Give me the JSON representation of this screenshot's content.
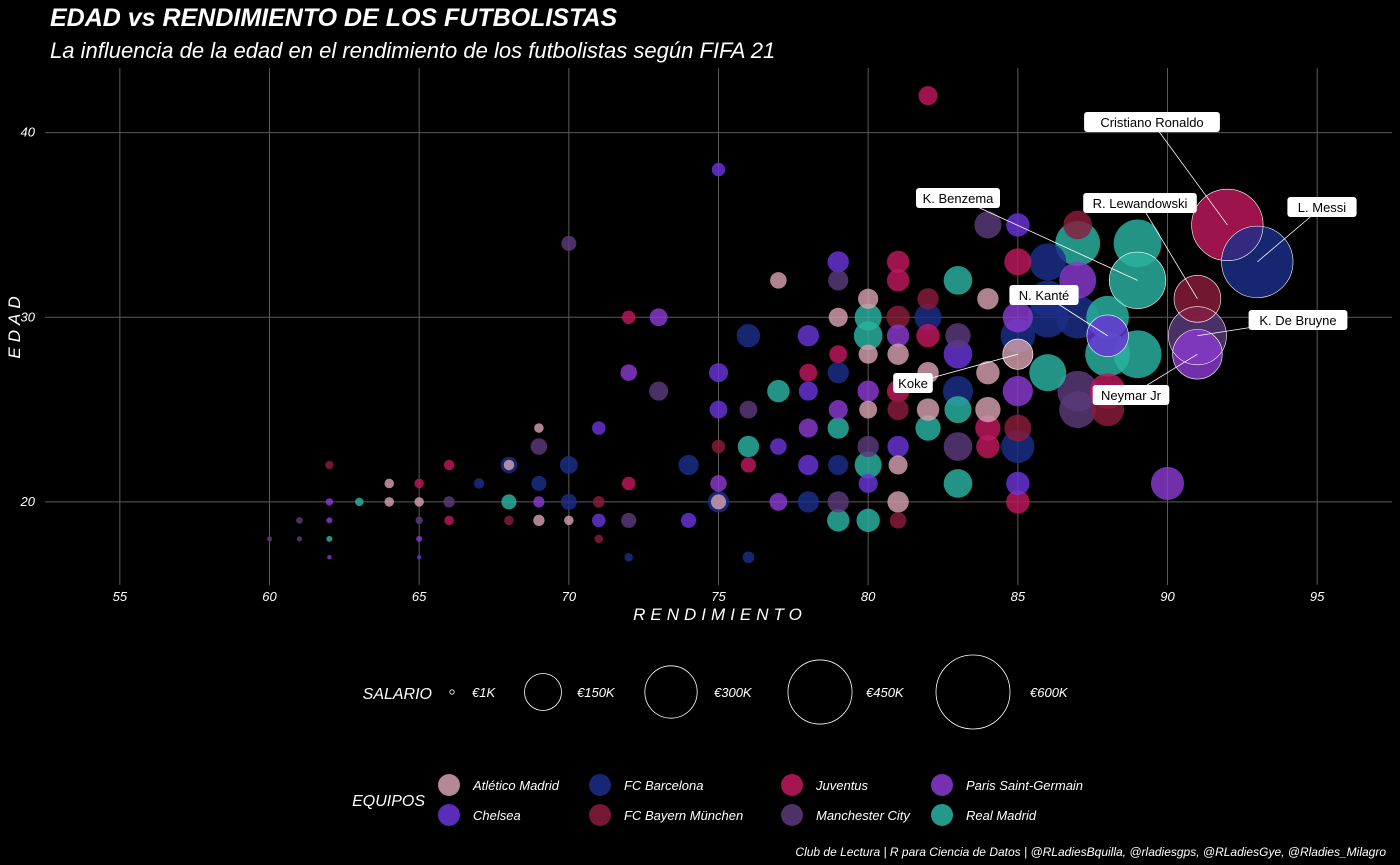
{
  "title": "EDAD vs RENDIMIENTO DE LOS FUTBOLISTAS",
  "subtitle": "La influencia de la edad en el rendimiento de los futbolistas según FIFA 21",
  "caption": "Club de Lectura | R para Ciencia de Datos | @RLadiesBquilla, @rladiesgps, @RLadiesGye, @Rladies_Milagro",
  "chart_data": {
    "type": "scatter",
    "xlabel": "RENDIMIENTO",
    "ylabel": "EDAD",
    "xlim": [
      52.5,
      97.5
    ],
    "ylim": [
      15.5,
      43.5
    ],
    "x_ticks": [
      55,
      60,
      65,
      70,
      75,
      80,
      85,
      90,
      95
    ],
    "y_ticks": [
      20,
      30,
      40
    ],
    "grid": true,
    "size_legend": {
      "title": "SALARIO",
      "entries": [
        {
          "label": "€1K",
          "value": 1000
        },
        {
          "label": "€150K",
          "value": 150000
        },
        {
          "label": "€300K",
          "value": 300000
        },
        {
          "label": "€450K",
          "value": 450000
        },
        {
          "label": "€600K",
          "value": 600000
        }
      ]
    },
    "color_legend": {
      "title": "EQUIPOS",
      "teams": [
        {
          "name": "Atlético Madrid",
          "color": "#d4a0ae"
        },
        {
          "name": "Chelsea",
          "color": "#6a35d8"
        },
        {
          "name": "FC Barcelona",
          "color": "#1c2e8a"
        },
        {
          "name": "FC Bayern München",
          "color": "#8a1c3a"
        },
        {
          "name": "Juventus",
          "color": "#c0185e"
        },
        {
          "name": "Manchester City",
          "color": "#5a3a7a"
        },
        {
          "name": "Paris Saint-Germain",
          "color": "#8a3ad0"
        },
        {
          "name": "Real Madrid",
          "color": "#2ab3a2"
        }
      ]
    },
    "labeled_players": [
      {
        "name": "Cristiano Ronaldo",
        "x": 92,
        "y": 35,
        "team": "Juventus",
        "salary": 560000
      },
      {
        "name": "L. Messi",
        "x": 93,
        "y": 33,
        "team": "FC Barcelona",
        "salary": 560000
      },
      {
        "name": "K. Benzema",
        "x": 89,
        "y": 32,
        "team": "Real Madrid",
        "salary": 350000
      },
      {
        "name": "R. Lewandowski",
        "x": 91,
        "y": 31,
        "team": "FC Bayern München",
        "salary": 240000
      },
      {
        "name": "N. Kanté",
        "x": 88,
        "y": 29,
        "team": "Chelsea",
        "salary": 190000
      },
      {
        "name": "K. De Bruyne",
        "x": 91,
        "y": 29,
        "team": "Manchester City",
        "salary": 370000
      },
      {
        "name": "Neymar Jr",
        "x": 91,
        "y": 28,
        "team": "Paris Saint-Germain",
        "salary": 270000
      },
      {
        "name": "Koke",
        "x": 85,
        "y": 28,
        "team": "Atlético Madrid",
        "salary": 100000
      }
    ],
    "points": [
      [
        60,
        18,
        "Manchester City",
        3000
      ],
      [
        61,
        18,
        "Manchester City",
        3000
      ],
      [
        61,
        19,
        "Manchester City",
        5000
      ],
      [
        62,
        17,
        "Paris Saint-Germain",
        1000
      ],
      [
        62,
        18,
        "Real Madrid",
        4000
      ],
      [
        62,
        19,
        "Paris Saint-Germain",
        4000
      ],
      [
        62,
        20,
        "Paris Saint-Germain",
        6000
      ],
      [
        62,
        22,
        "FC Bayern München",
        8000
      ],
      [
        63,
        20,
        "Real Madrid",
        8000
      ],
      [
        64,
        20,
        "Atlético Madrid",
        10000
      ],
      [
        64,
        21,
        "Atlético Madrid",
        10000
      ],
      [
        65,
        17,
        "Chelsea",
        1000
      ],
      [
        65,
        18,
        "Paris Saint-Germain",
        4000
      ],
      [
        65,
        19,
        "Manchester City",
        6000
      ],
      [
        65,
        20,
        "Atlético Madrid",
        10000
      ],
      [
        65,
        21,
        "Juventus",
        10000
      ],
      [
        66,
        19,
        "Juventus",
        10000
      ],
      [
        66,
        20,
        "Manchester City",
        14000
      ],
      [
        66,
        22,
        "Juventus",
        12000
      ],
      [
        67,
        21,
        "FC Barcelona",
        12000
      ],
      [
        68,
        19,
        "FC Bayern München",
        10000
      ],
      [
        68,
        20,
        "Real Madrid",
        25000
      ],
      [
        68,
        22,
        "FC Barcelona",
        30000
      ],
      [
        68,
        22,
        "Atlético Madrid",
        12000
      ],
      [
        69,
        19,
        "Atlético Madrid",
        14000
      ],
      [
        69,
        20,
        "Paris Saint-Germain",
        14000
      ],
      [
        69,
        21,
        "FC Barcelona",
        25000
      ],
      [
        69,
        23,
        "Manchester City",
        30000
      ],
      [
        69,
        24,
        "Atlético Madrid",
        10000
      ],
      [
        70,
        19,
        "Atlético Madrid",
        10000
      ],
      [
        70,
        20,
        "FC Barcelona",
        28000
      ],
      [
        70,
        22,
        "FC Barcelona",
        35000
      ],
      [
        70,
        34,
        "Manchester City",
        25000
      ],
      [
        71,
        18,
        "FC Bayern München",
        8000
      ],
      [
        71,
        19,
        "Chelsea",
        20000
      ],
      [
        71,
        20,
        "FC Bayern München",
        15000
      ],
      [
        71,
        24,
        "Chelsea",
        20000
      ],
      [
        72,
        17,
        "FC Barcelona",
        8000
      ],
      [
        72,
        19,
        "Manchester City",
        25000
      ],
      [
        72,
        21,
        "Juventus",
        20000
      ],
      [
        72,
        27,
        "Paris Saint-Germain",
        30000
      ],
      [
        72,
        30,
        "Juventus",
        20000
      ],
      [
        73,
        26,
        "Manchester City",
        40000
      ],
      [
        73,
        30,
        "Paris Saint-Germain",
        35000
      ],
      [
        74,
        19,
        "Chelsea",
        25000
      ],
      [
        74,
        22,
        "FC Barcelona",
        45000
      ],
      [
        75,
        20,
        "FC Barcelona",
        50000
      ],
      [
        75,
        20,
        "Atlético Madrid",
        25000
      ],
      [
        75,
        21,
        "Paris Saint-Germain",
        30000
      ],
      [
        75,
        23,
        "FC Bayern München",
        20000
      ],
      [
        75,
        25,
        "Chelsea",
        35000
      ],
      [
        75,
        27,
        "Chelsea",
        40000
      ],
      [
        75,
        38,
        "Chelsea",
        20000
      ],
      [
        76,
        17,
        "FC Barcelona",
        15000
      ],
      [
        76,
        22,
        "Juventus",
        25000
      ],
      [
        76,
        23,
        "Real Madrid",
        50000
      ],
      [
        76,
        25,
        "Manchester City",
        35000
      ],
      [
        76,
        29,
        "FC Barcelona",
        60000
      ],
      [
        77,
        20,
        "Paris Saint-Germain",
        35000
      ],
      [
        77,
        23,
        "Chelsea",
        30000
      ],
      [
        77,
        26,
        "Real Madrid",
        55000
      ],
      [
        77,
        32,
        "Atlético Madrid",
        30000
      ],
      [
        78,
        20,
        "FC Barcelona",
        50000
      ],
      [
        78,
        22,
        "Chelsea",
        45000
      ],
      [
        78,
        24,
        "Paris Saint-Germain",
        40000
      ],
      [
        78,
        26,
        "Chelsea",
        40000
      ],
      [
        78,
        27,
        "Juventus",
        35000
      ],
      [
        78,
        29,
        "Chelsea",
        50000
      ],
      [
        79,
        19,
        "Real Madrid",
        55000
      ],
      [
        79,
        20,
        "Manchester City",
        50000
      ],
      [
        79,
        22,
        "FC Barcelona",
        45000
      ],
      [
        79,
        24,
        "Real Madrid",
        50000
      ],
      [
        79,
        25,
        "Paris Saint-Germain",
        40000
      ],
      [
        79,
        27,
        "FC Barcelona",
        50000
      ],
      [
        79,
        28,
        "Juventus",
        35000
      ],
      [
        79,
        30,
        "Atlético Madrid",
        40000
      ],
      [
        79,
        32,
        "Manchester City",
        45000
      ],
      [
        79,
        33,
        "Chelsea",
        50000
      ],
      [
        80,
        19,
        "Real Madrid",
        60000
      ],
      [
        80,
        21,
        "Chelsea",
        40000
      ],
      [
        80,
        22,
        "Real Madrid",
        80000
      ],
      [
        80,
        23,
        "Manchester City",
        50000
      ],
      [
        80,
        25,
        "Atlético Madrid",
        35000
      ],
      [
        80,
        26,
        "Paris Saint-Germain",
        50000
      ],
      [
        80,
        28,
        "Atlético Madrid",
        40000
      ],
      [
        80,
        29,
        "Real Madrid",
        90000
      ],
      [
        80,
        30,
        "Real Madrid",
        80000
      ],
      [
        80,
        31,
        "Atlético Madrid",
        45000
      ],
      [
        81,
        19,
        "FC Bayern München",
        30000
      ],
      [
        81,
        20,
        "Atlético Madrid",
        50000
      ],
      [
        81,
        22,
        "Atlético Madrid",
        40000
      ],
      [
        81,
        23,
        "Chelsea",
        50000
      ],
      [
        81,
        25,
        "FC Bayern München",
        50000
      ],
      [
        81,
        26,
        "Juventus",
        55000
      ],
      [
        81,
        28,
        "Atlético Madrid",
        50000
      ],
      [
        81,
        29,
        "Paris Saint-Germain",
        55000
      ],
      [
        81,
        30,
        "FC Bayern München",
        60000
      ],
      [
        81,
        32,
        "Juventus",
        55000
      ],
      [
        81,
        33,
        "Juventus",
        55000
      ],
      [
        82,
        24,
        "Real Madrid",
        70000
      ],
      [
        82,
        25,
        "Atlético Madrid",
        55000
      ],
      [
        82,
        27,
        "Atlético Madrid",
        50000
      ],
      [
        82,
        29,
        "Juventus",
        60000
      ],
      [
        82,
        30,
        "FC Barcelona",
        80000
      ],
      [
        82,
        31,
        "FC Bayern München",
        50000
      ],
      [
        82,
        42,
        "Juventus",
        40000
      ],
      [
        83,
        21,
        "Real Madrid",
        90000
      ],
      [
        83,
        23,
        "Manchester City",
        90000
      ],
      [
        83,
        25,
        "Real Madrid",
        80000
      ],
      [
        83,
        26,
        "FC Barcelona",
        100000
      ],
      [
        83,
        28,
        "Chelsea",
        90000
      ],
      [
        83,
        29,
        "Manchester City",
        70000
      ],
      [
        83,
        32,
        "Real Madrid",
        90000
      ],
      [
        84,
        23,
        "Juventus",
        60000
      ],
      [
        84,
        24,
        "Juventus",
        70000
      ],
      [
        84,
        25,
        "Atlético Madrid",
        70000
      ],
      [
        84,
        27,
        "Atlético Madrid",
        60000
      ],
      [
        84,
        31,
        "Atlético Madrid",
        50000
      ],
      [
        84,
        35,
        "Manchester City",
        80000
      ],
      [
        85,
        20,
        "Juventus",
        60000
      ],
      [
        85,
        21,
        "Chelsea",
        60000
      ],
      [
        85,
        23,
        "FC Barcelona",
        120000
      ],
      [
        85,
        24,
        "FC Bayern München",
        80000
      ],
      [
        85,
        26,
        "Paris Saint-Germain",
        100000
      ],
      [
        85,
        29,
        "FC Barcelona",
        130000
      ],
      [
        85,
        30,
        "Paris Saint-Germain",
        100000
      ],
      [
        85,
        33,
        "Juventus",
        80000
      ],
      [
        85,
        35,
        "Chelsea",
        60000
      ],
      [
        86,
        27,
        "Real Madrid",
        150000
      ],
      [
        86,
        30,
        "FC Barcelona",
        180000
      ],
      [
        86,
        31,
        "FC Barcelona",
        150000
      ],
      [
        86,
        33,
        "FC Barcelona",
        150000
      ],
      [
        87,
        25,
        "Manchester City",
        150000
      ],
      [
        87,
        26,
        "Manchester City",
        180000
      ],
      [
        87,
        30,
        "FC Barcelona",
        200000
      ],
      [
        87,
        32,
        "Paris Saint-Germain",
        150000
      ],
      [
        87,
        34,
        "Real Madrid",
        220000
      ],
      [
        87,
        35,
        "FC Bayern München",
        90000
      ],
      [
        88,
        25,
        "FC Bayern München",
        120000
      ],
      [
        88,
        26,
        "Juventus",
        140000
      ],
      [
        88,
        28,
        "Real Madrid",
        220000
      ],
      [
        88,
        30,
        "Real Madrid",
        200000
      ],
      [
        89,
        28,
        "Real Madrid",
        250000
      ],
      [
        89,
        34,
        "Real Madrid",
        250000
      ],
      [
        90,
        21,
        "Paris Saint-Germain",
        120000
      ]
    ]
  }
}
